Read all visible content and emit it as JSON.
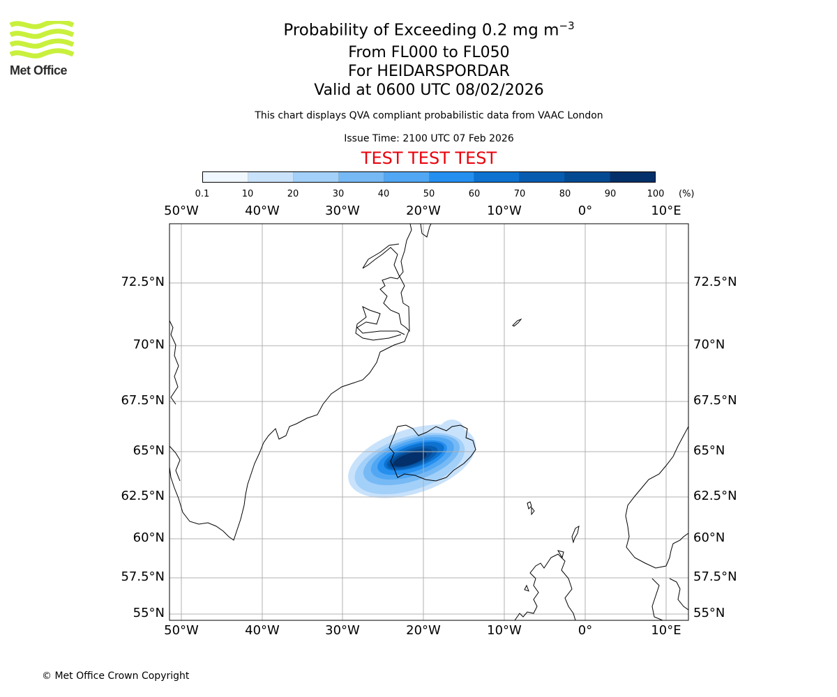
{
  "logo": {
    "name": "Met Office",
    "color": "#c8f03c"
  },
  "title": {
    "main": "Probability of Exceeding 0.2 mg m",
    "main_sup": "−3",
    "levels": "From FL000 to FL050",
    "volcano": "For HEIDARSPORDAR",
    "valid": "Valid at 0600 UTC 08/02/2026"
  },
  "subtitle": "This chart displays QVA compliant probabilistic data from VAAC London",
  "issue_time": "Issue Time: 2100 UTC 07 Feb 2026",
  "test_banner": "TEST TEST TEST",
  "test_color": "#e8000b",
  "colorbar": {
    "ticks": [
      "0.1",
      "10",
      "20",
      "30",
      "40",
      "50",
      "60",
      "70",
      "80",
      "90",
      "100"
    ],
    "unit": "(%)",
    "colors": [
      "#f0f7fe",
      "#c9e2fb",
      "#a3d0f9",
      "#76b9f5",
      "#51a7f3",
      "#258ff0",
      "#0d72d0",
      "#075cb0",
      "#044a93",
      "#03306a"
    ]
  },
  "map": {
    "lon_labels": [
      "50°W",
      "40°W",
      "30°W",
      "20°W",
      "10°W",
      "0°",
      "10°E"
    ],
    "lat_labels": [
      "72.5°N",
      "70°N",
      "67.5°N",
      "65°N",
      "62.5°N",
      "60°N",
      "57.5°N",
      "55°N"
    ]
  },
  "copyright": "© Met Office Crown Copyright"
}
